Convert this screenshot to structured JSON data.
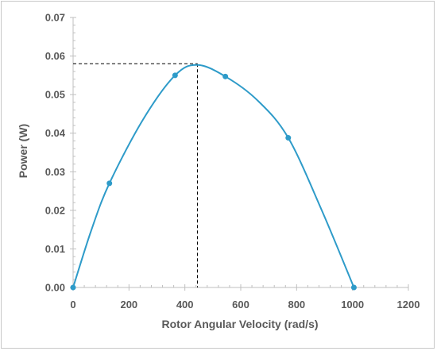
{
  "chart_data": {
    "type": "line",
    "title": "",
    "xlabel": "Rotor Angular Velocity (rad/s)",
    "ylabel": "Power (W)",
    "xlim": [
      0,
      1200
    ],
    "ylim": [
      0,
      0.07
    ],
    "x_ticks": [
      "0",
      "200",
      "400",
      "600",
      "800",
      "1000",
      "1200"
    ],
    "y_ticks": [
      "0.00",
      "0.01",
      "0.02",
      "0.03",
      "0.04",
      "0.05",
      "0.06",
      "0.07"
    ],
    "grid": false,
    "legend": "none",
    "series": [
      {
        "points": [
          {
            "x": 0,
            "y": 0.0
          },
          {
            "x": 130,
            "y": 0.027
          },
          {
            "x": 365,
            "y": 0.055
          },
          {
            "x": 545,
            "y": 0.0547
          },
          {
            "x": 770,
            "y": 0.0388
          },
          {
            "x": 1005,
            "y": 0.0
          }
        ],
        "curve": [
          {
            "x": 0,
            "y": 0.0
          },
          {
            "x": 65,
            "y": 0.0148
          },
          {
            "x": 130,
            "y": 0.027
          },
          {
            "x": 250,
            "y": 0.0435
          },
          {
            "x": 365,
            "y": 0.055
          },
          {
            "x": 445,
            "y": 0.0577
          },
          {
            "x": 545,
            "y": 0.0547
          },
          {
            "x": 660,
            "y": 0.0485
          },
          {
            "x": 770,
            "y": 0.0388
          },
          {
            "x": 890,
            "y": 0.02
          },
          {
            "x": 1005,
            "y": 0.0
          }
        ]
      }
    ],
    "annotations": [
      {
        "type": "peak-guide",
        "x": 445,
        "y": 0.058
      }
    ],
    "colors": {
      "series": "#2e9bc9",
      "axis": "#bfbfbf",
      "text": "#595959",
      "guide": "#000000"
    }
  }
}
